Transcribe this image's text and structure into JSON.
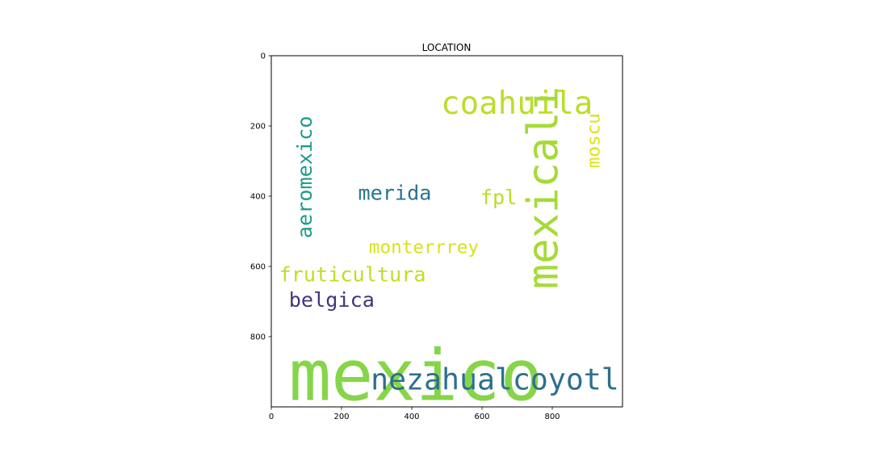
{
  "chart_data": {
    "type": "wordcloud",
    "title": "LOCATION",
    "xlim": [
      0,
      1000
    ],
    "ylim": [
      1000,
      0
    ],
    "x_ticks": [
      0,
      200,
      400,
      600,
      800
    ],
    "y_ticks": [
      0,
      200,
      400,
      600,
      800
    ],
    "x_tick_labels": [
      "0",
      "200",
      "400",
      "600",
      "800"
    ],
    "y_tick_labels": [
      "0",
      "200",
      "400",
      "600",
      "800"
    ],
    "words": [
      {
        "text": "mexico",
        "size": 200,
        "orientation": "horizontal",
        "x": 50,
        "y": 980,
        "color": "#86d549"
      },
      {
        "text": "nezahualcoyotl",
        "size": 84,
        "orientation": "horizontal",
        "x": 283,
        "y": 950,
        "color": "#2d708e"
      },
      {
        "text": "coahuila",
        "size": 90,
        "orientation": "horizontal",
        "x": 483,
        "y": 165,
        "color": "#bade28"
      },
      {
        "text": "mexicali",
        "size": 120,
        "orientation": "vertical",
        "x": 815,
        "y": 665,
        "color": "#a5db36"
      },
      {
        "text": "aeromexico",
        "size": 58,
        "orientation": "vertical",
        "x": 115,
        "y": 520,
        "color": "#1f9a8a"
      },
      {
        "text": "merida",
        "size": 58,
        "orientation": "horizontal",
        "x": 247,
        "y": 410,
        "color": "#2c738e"
      },
      {
        "text": "fpl",
        "size": 58,
        "orientation": "horizontal",
        "x": 595,
        "y": 423,
        "color": "#bade28"
      },
      {
        "text": "moscu",
        "size": 52,
        "orientation": "vertical",
        "x": 935,
        "y": 320,
        "color": "#dde318"
      },
      {
        "text": "monterrrey",
        "size": 52,
        "orientation": "horizontal",
        "x": 278,
        "y": 562,
        "color": "#d8e219"
      },
      {
        "text": "fruticultura",
        "size": 58,
        "orientation": "horizontal",
        "x": 22,
        "y": 643,
        "color": "#bddf26"
      },
      {
        "text": "belgica",
        "size": 58,
        "orientation": "horizontal",
        "x": 50,
        "y": 715,
        "color": "#46337e"
      }
    ]
  }
}
